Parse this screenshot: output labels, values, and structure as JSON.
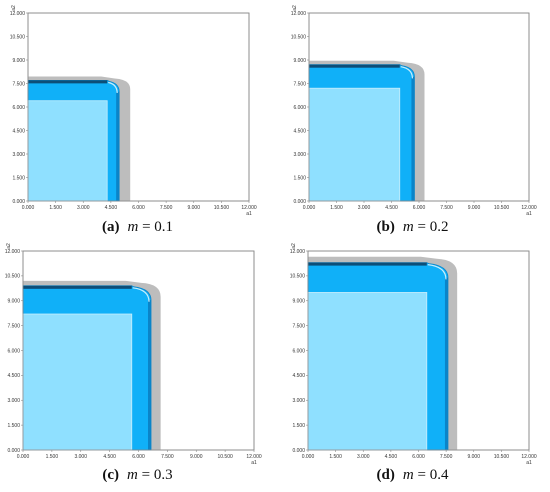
{
  "chart_data": [
    {
      "type": "area",
      "caption": {
        "label": "(a)",
        "var": "m",
        "eq": " = 0.1"
      },
      "xlabel": "a1",
      "ylabel": "a2",
      "xlim": [
        0,
        12000
      ],
      "ylim": [
        0,
        12000
      ],
      "xticks": [
        "0.000",
        "1.500",
        "3.000",
        "4.500",
        "6.000",
        "7.500",
        "9.000",
        "10.500",
        "12.000"
      ],
      "yticks": [
        "0.000",
        "1.500",
        "3.000",
        "4.500",
        "6.000",
        "7.500",
        "9.000",
        "10.500",
        "12.000"
      ],
      "regions": {
        "inner_x": 4300,
        "inner_y": 6400,
        "mid_x": 4950,
        "mid_y": 7700,
        "outer_x": 5550,
        "outer_y": 7950
      }
    },
    {
      "type": "area",
      "caption": {
        "label": "(b)",
        "var": "m",
        "eq": " = 0.2"
      },
      "xlabel": "a1",
      "ylabel": "a2",
      "xlim": [
        0,
        12000
      ],
      "ylim": [
        0,
        12000
      ],
      "xticks": [
        "0.000",
        "1.500",
        "3.000",
        "4.500",
        "6.000",
        "7.500",
        "9.000",
        "10.500",
        "12.000"
      ],
      "yticks": [
        "0.000",
        "1.500",
        "3.000",
        "4.500",
        "6.000",
        "7.500",
        "9.000",
        "10.500",
        "12.000"
      ],
      "regions": {
        "inner_x": 4950,
        "inner_y": 7200,
        "mid_x": 5750,
        "mid_y": 8700,
        "outer_x": 6300,
        "outer_y": 8950
      }
    },
    {
      "type": "area",
      "caption": {
        "label": "(c)",
        "var": "m",
        "eq": " = 0.3"
      },
      "xlabel": "a1",
      "ylabel": "a2",
      "xlim": [
        0,
        12000
      ],
      "ylim": [
        0,
        12000
      ],
      "xticks": [
        "0.000",
        "1.500",
        "3.000",
        "4.500",
        "6.000",
        "7.500",
        "9.000",
        "10.500",
        "12.000"
      ],
      "yticks": [
        "0.000",
        "1.500",
        "3.000",
        "4.500",
        "6.000",
        "7.500",
        "9.000",
        "10.500",
        "12.000"
      ],
      "regions": {
        "inner_x": 5650,
        "inner_y": 8200,
        "mid_x": 6650,
        "mid_y": 9900,
        "outer_x": 7150,
        "outer_y": 10200
      }
    },
    {
      "type": "area",
      "caption": {
        "label": "(d)",
        "var": "m",
        "eq": " = 0.4"
      },
      "xlabel": "a1",
      "ylabel": "a2",
      "xlim": [
        0,
        12000
      ],
      "ylim": [
        0,
        12000
      ],
      "xticks": [
        "0.000",
        "1.500",
        "3.000",
        "4.500",
        "6.000",
        "7.500",
        "9.000",
        "10.500",
        "12.000"
      ],
      "yticks": [
        "0.000",
        "1.500",
        "3.000",
        "4.500",
        "6.000",
        "7.500",
        "9.000",
        "10.500",
        "12.000"
      ],
      "regions": {
        "inner_x": 6450,
        "inner_y": 9500,
        "mid_x": 7600,
        "mid_y": 11300,
        "outer_x": 8100,
        "outer_y": 11650
      }
    }
  ],
  "colors": {
    "frame": "#8a8a8a",
    "inner": "#8fe0ff",
    "mid": "#10b0f8",
    "band": "#0a84c8",
    "dark": "#0d4e78",
    "shadow": "#bdbdbd",
    "edge": "#c8eefc"
  }
}
